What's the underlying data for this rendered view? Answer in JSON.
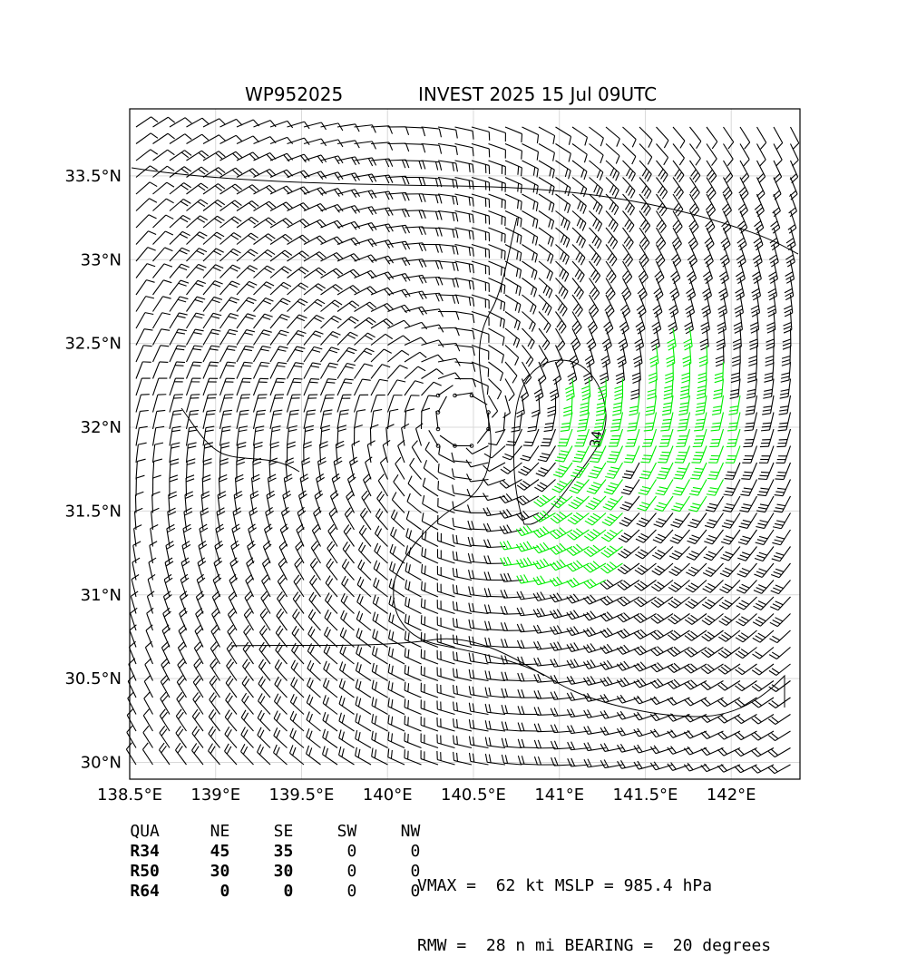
{
  "header": {
    "storm_id": "WP952025",
    "subtitle": "INVEST 2025 15 Jul 09UTC"
  },
  "chart_data": {
    "type": "wind-barb-map",
    "xlim": [
      138.5,
      142.4
    ],
    "ylim": [
      29.9,
      33.9
    ],
    "x_ticks": [
      {
        "value": 138.5,
        "label": "138.5°E"
      },
      {
        "value": 139.0,
        "label": "139°E"
      },
      {
        "value": 139.5,
        "label": "139.5°E"
      },
      {
        "value": 140.0,
        "label": "140°E"
      },
      {
        "value": 140.5,
        "label": "140.5°E"
      },
      {
        "value": 141.0,
        "label": "141°E"
      },
      {
        "value": 141.5,
        "label": "141.5°E"
      },
      {
        "value": 142.0,
        "label": "142°E"
      }
    ],
    "y_ticks": [
      {
        "value": 30.0,
        "label": "30°N"
      },
      {
        "value": 30.5,
        "label": "30.5°N"
      },
      {
        "value": 31.0,
        "label": "31°N"
      },
      {
        "value": 31.5,
        "label": "31.5°N"
      },
      {
        "value": 32.0,
        "label": "32°N"
      },
      {
        "value": 32.5,
        "label": "32.5°N"
      },
      {
        "value": 33.0,
        "label": "33°N"
      },
      {
        "value": 33.5,
        "label": "33.5°N"
      }
    ],
    "grid": true,
    "center": {
      "lon": 140.45,
      "lat": 32.05
    },
    "vmax_kt": 62,
    "rmw_nmi": 28,
    "barb_colors": {
      "below_34kt": "#000000",
      "34_to_50kt": "#00ee00",
      "50_to_64kt": "#f0b400",
      "64kt_plus": "#ff4500"
    },
    "contour_label": "34"
  },
  "table": {
    "header": [
      "QUA",
      "NE",
      "SE",
      "SW",
      "NW"
    ],
    "rows": [
      {
        "label": "R34",
        "values": [
          "45",
          "35",
          "0",
          "0"
        ]
      },
      {
        "label": "R50",
        "values": [
          "30",
          "30",
          "0",
          "0"
        ]
      },
      {
        "label": "R64",
        "values": [
          "0",
          "0",
          "0",
          "0"
        ]
      }
    ]
  },
  "stats": {
    "line1": "VMAX =  62 kt MSLP = 985.4 hPa",
    "line2": "RMW =  28 n mi BEARING =  20 degrees"
  }
}
